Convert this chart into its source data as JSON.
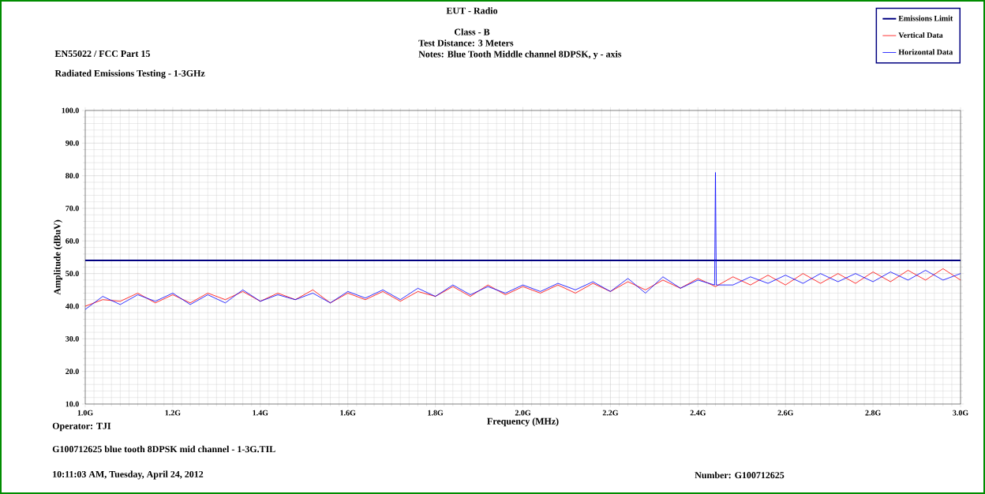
{
  "chart_data": {
    "type": "line",
    "title": "EN55022 / FCC Part 15",
    "subtitle": "Radiated Emissions Testing - 1-3GHz",
    "xlabel": "Frequency (MHz)",
    "ylabel": "Amplitude (dBuV)",
    "annotations": [
      "EUT - Radio",
      "Class - B",
      "Test Distance: 3 Meters",
      "Notes: Blue Tooth Middle channel 8DPSK, y - axis",
      "Operator: TJI",
      "G100712625 blue tooth 8DPSK mid channel - 1-3G.TIL",
      "10:11:03 AM, Tuesday, April 24, 2012",
      "Number: G100712625"
    ],
    "xlim": [
      1.0,
      3.0
    ],
    "ylim": [
      10,
      100
    ],
    "xticks": [
      {
        "value": 1.0,
        "label": "1.0G"
      },
      {
        "value": 1.2,
        "label": "1.2G"
      },
      {
        "value": 1.4,
        "label": "1.4G"
      },
      {
        "value": 1.6,
        "label": "1.6G"
      },
      {
        "value": 1.8,
        "label": "1.8G"
      },
      {
        "value": 2.0,
        "label": "2.0G"
      },
      {
        "value": 2.2,
        "label": "2.2G"
      },
      {
        "value": 2.4,
        "label": "2.4G"
      },
      {
        "value": 2.6,
        "label": "2.6G"
      },
      {
        "value": 2.8,
        "label": "2.8G"
      },
      {
        "value": 3.0,
        "label": "3.0G"
      }
    ],
    "yticks": [
      {
        "value": 10,
        "label": "10.0"
      },
      {
        "value": 20,
        "label": "20.0"
      },
      {
        "value": 30,
        "label": "30.0"
      },
      {
        "value": 40,
        "label": "40.0"
      },
      {
        "value": 50,
        "label": "50.0"
      },
      {
        "value": 60,
        "label": "60.0"
      },
      {
        "value": 70,
        "label": "70.0"
      },
      {
        "value": 80,
        "label": "80.0"
      },
      {
        "value": 90,
        "label": "90.0"
      },
      {
        "value": 100,
        "label": "100.0"
      }
    ],
    "grid": true,
    "legend": "top right",
    "series": [
      {
        "name": "Emissions Limit",
        "color": "#000080",
        "x": [
          1.0,
          3.0
        ],
        "values": [
          54,
          54
        ]
      },
      {
        "name": "Vertical Data",
        "color": "#ff0000",
        "x": [
          1.0,
          1.04,
          1.08,
          1.12,
          1.16,
          1.2,
          1.24,
          1.28,
          1.32,
          1.36,
          1.4,
          1.44,
          1.48,
          1.52,
          1.56,
          1.6,
          1.64,
          1.68,
          1.72,
          1.76,
          1.8,
          1.84,
          1.88,
          1.92,
          1.96,
          2.0,
          2.04,
          2.08,
          2.12,
          2.16,
          2.2,
          2.24,
          2.28,
          2.32,
          2.36,
          2.4,
          2.44,
          2.48,
          2.52,
          2.56,
          2.6,
          2.64,
          2.68,
          2.72,
          2.76,
          2.8,
          2.84,
          2.88,
          2.92,
          2.96,
          3.0
        ],
        "values": [
          40,
          42,
          41.5,
          44,
          41,
          43.5,
          41,
          44,
          42,
          44.5,
          41.5,
          44,
          42,
          45,
          41,
          44,
          42,
          44.5,
          41.5,
          44.5,
          43,
          46,
          43,
          46.5,
          43.5,
          46,
          44,
          46.5,
          44,
          47,
          44.5,
          47.5,
          45,
          48,
          45.5,
          48.5,
          46,
          49,
          46.5,
          49.5,
          46.5,
          50,
          47,
          50,
          47,
          50.5,
          47.5,
          51,
          48,
          51.5,
          48
        ]
      },
      {
        "name": "Horizontal Data",
        "color": "#0000ff",
        "x": [
          1.0,
          1.04,
          1.08,
          1.12,
          1.16,
          1.2,
          1.24,
          1.28,
          1.32,
          1.36,
          1.4,
          1.44,
          1.48,
          1.52,
          1.56,
          1.6,
          1.64,
          1.68,
          1.72,
          1.76,
          1.8,
          1.84,
          1.88,
          1.92,
          1.96,
          2.0,
          2.04,
          2.08,
          2.12,
          2.16,
          2.2,
          2.24,
          2.28,
          2.32,
          2.36,
          2.4,
          2.438,
          2.44,
          2.442,
          2.48,
          2.52,
          2.56,
          2.6,
          2.64,
          2.68,
          2.72,
          2.76,
          2.8,
          2.84,
          2.88,
          2.92,
          2.96,
          3.0
        ],
        "values": [
          39,
          43,
          40.5,
          43.5,
          41.5,
          44,
          40.5,
          43.5,
          41,
          45,
          41.5,
          43.5,
          42,
          44,
          41,
          44.5,
          42.5,
          45,
          42,
          45.5,
          43,
          46.5,
          43.5,
          46,
          44,
          46.5,
          44.5,
          47,
          45,
          47.5,
          44.5,
          48.5,
          44,
          49,
          45.5,
          48,
          46.5,
          81,
          46.5,
          46.5,
          49,
          47,
          49.5,
          47,
          50,
          47.5,
          50,
          47.5,
          50.5,
          48,
          51,
          48,
          50
        ]
      }
    ]
  }
}
